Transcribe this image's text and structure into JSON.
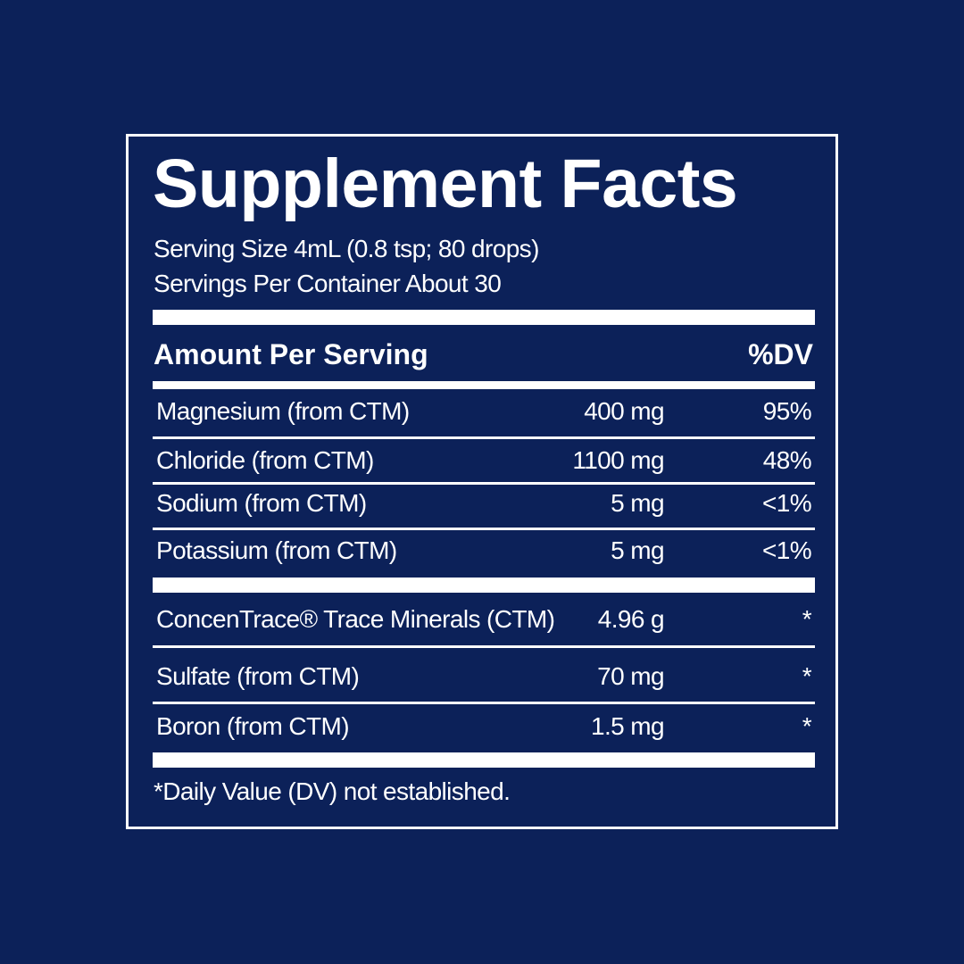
{
  "title": "Supplement Facts",
  "serving": [
    "Serving Size 4mL (0.8 tsp; 80 drops)",
    "Servings Per Container About 30"
  ],
  "header": {
    "amount": "Amount Per Serving",
    "dv": "%DV"
  },
  "table": {
    "rows": [
      [
        "Magnesium (from CTM)",
        "400 mg",
        "95%"
      ],
      [
        "Chloride (from CTM)",
        "1100 mg",
        "48%"
      ],
      [
        "Sodium (from CTM)",
        "5 mg",
        "<1%"
      ],
      [
        "Potassium (from CTM)",
        "5 mg",
        "<1%"
      ]
    ]
  },
  "table2": {
    "rows": [
      [
        "ConcenTrace® Trace Minerals (CTM)",
        "4.96 g",
        "*"
      ],
      [
        "Sulfate (from CTM)",
        "70 mg",
        "*"
      ],
      [
        "Boron (from CTM)",
        "1.5 mg",
        "*"
      ]
    ]
  },
  "footnote": "*Daily Value (DV) not established."
}
